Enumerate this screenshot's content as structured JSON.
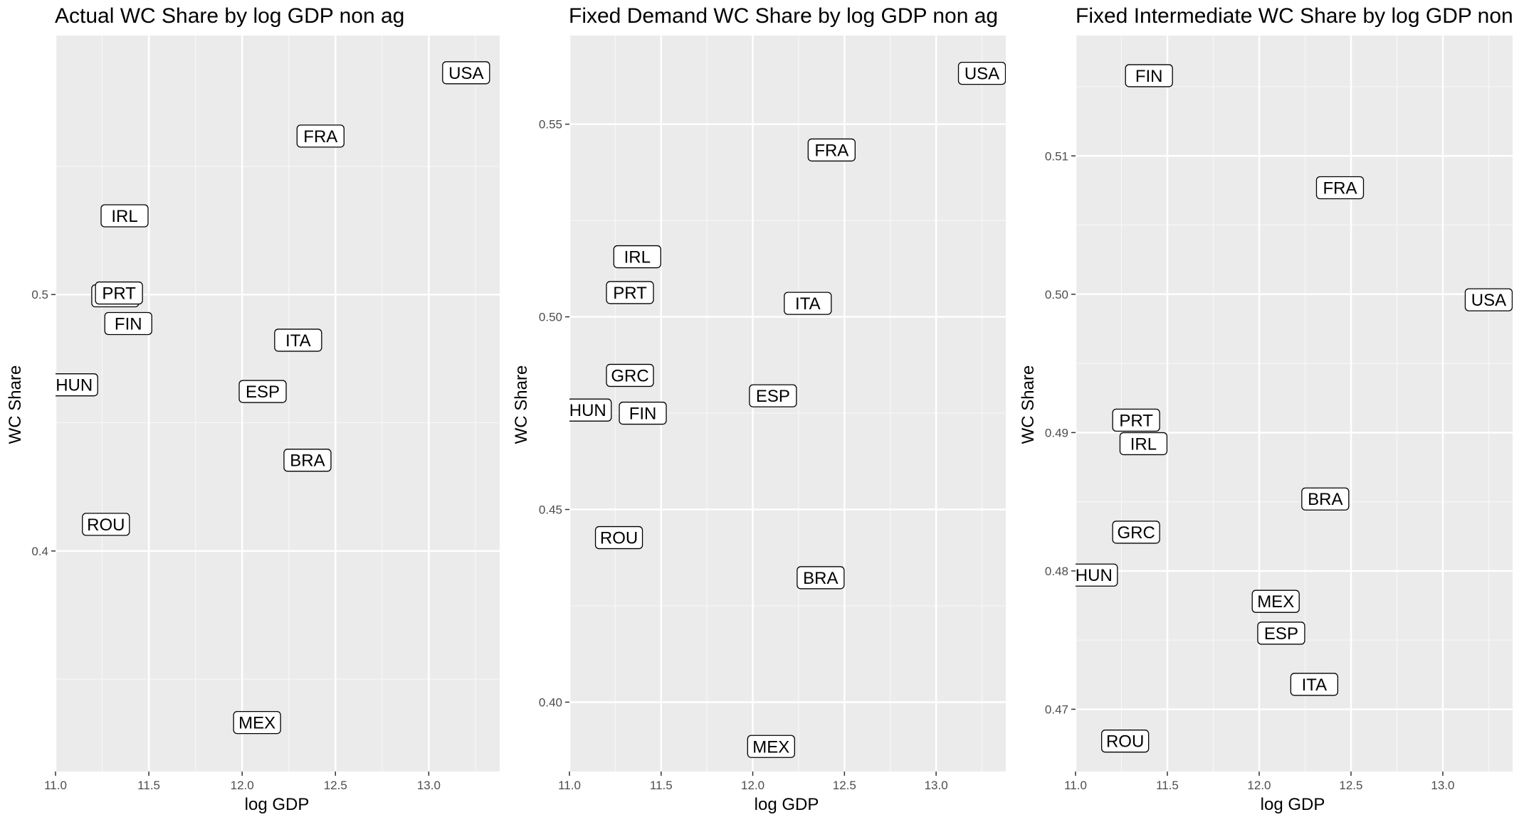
{
  "chart_data": [
    {
      "type": "scatter",
      "title": "Actual WC Share by log GDP non ag",
      "xlabel": "log GDP",
      "ylabel": "WC Share",
      "xlim": [
        11.0,
        13.38
      ],
      "ylim": [
        0.314,
        0.601
      ],
      "x_ticks": [
        "11.0",
        "11.5",
        "12.0",
        "12.5",
        "13.0"
      ],
      "x_tick_values": [
        11.0,
        11.5,
        12.0,
        12.5,
        13.0
      ],
      "y_ticks": [
        "0.4",
        "0.5"
      ],
      "y_tick_values": [
        0.4,
        0.5
      ],
      "grid": true,
      "points": [
        {
          "label": "USA",
          "x": 13.2,
          "y": 0.5865
        },
        {
          "label": "FRA",
          "x": 12.42,
          "y": 0.5618
        },
        {
          "label": "IRL",
          "x": 11.37,
          "y": 0.5307
        },
        {
          "label": "PRT",
          "x": 11.32,
          "y": 0.4995
        },
        {
          "label": "PRT",
          "x": 11.34,
          "y": 0.5006
        },
        {
          "label": "FIN",
          "x": 11.39,
          "y": 0.4887
        },
        {
          "label": "ITA",
          "x": 12.3,
          "y": 0.4822
        },
        {
          "label": "HUN",
          "x": 11.1,
          "y": 0.4648
        },
        {
          "label": "ESP",
          "x": 12.11,
          "y": 0.4622
        },
        {
          "label": "BRA",
          "x": 12.35,
          "y": 0.4354
        },
        {
          "label": "ROU",
          "x": 11.27,
          "y": 0.4104
        },
        {
          "label": "MEX",
          "x": 12.08,
          "y": 0.3331
        }
      ]
    },
    {
      "type": "scatter",
      "title": "Fixed Demand WC Share by log GDP non ag",
      "xlabel": "log GDP",
      "ylabel": "WC Share",
      "xlim": [
        11.0,
        13.38
      ],
      "ylim": [
        0.382,
        0.573
      ],
      "x_ticks": [
        "11.0",
        "11.5",
        "12.0",
        "12.5",
        "13.0"
      ],
      "x_tick_values": [
        11.0,
        11.5,
        12.0,
        12.5,
        13.0
      ],
      "y_ticks": [
        "0.40",
        "0.45",
        "0.50",
        "0.55"
      ],
      "y_tick_values": [
        0.4,
        0.45,
        0.5,
        0.55
      ],
      "grid": true,
      "points": [
        {
          "label": "USA",
          "x": 13.25,
          "y": 0.5632
        },
        {
          "label": "FRA",
          "x": 12.43,
          "y": 0.5433
        },
        {
          "label": "IRL",
          "x": 11.37,
          "y": 0.5156
        },
        {
          "label": "PRT",
          "x": 11.33,
          "y": 0.5063
        },
        {
          "label": "ITA",
          "x": 12.3,
          "y": 0.5035
        },
        {
          "label": "GRC",
          "x": 11.33,
          "y": 0.4848
        },
        {
          "label": "ESP",
          "x": 12.11,
          "y": 0.4795
        },
        {
          "label": "HUN",
          "x": 11.1,
          "y": 0.4758
        },
        {
          "label": "FIN",
          "x": 11.4,
          "y": 0.475
        },
        {
          "label": "ROU",
          "x": 11.27,
          "y": 0.4427
        },
        {
          "label": "BRA",
          "x": 12.37,
          "y": 0.4323
        },
        {
          "label": "MEX",
          "x": 12.1,
          "y": 0.3885
        }
      ]
    },
    {
      "type": "scatter",
      "title": "Fixed Intermediate WC Share by log GDP non ag",
      "xlabel": "log GDP",
      "ylabel": "WC Share",
      "xlim": [
        11.0,
        13.38
      ],
      "ylim": [
        0.4655,
        0.5187
      ],
      "x_ticks": [
        "11.0",
        "11.5",
        "12.0",
        "12.5",
        "13.0"
      ],
      "x_tick_values": [
        11.0,
        11.5,
        12.0,
        12.5,
        13.0
      ],
      "y_ticks": [
        "0.47",
        "0.48",
        "0.49",
        "0.50",
        "0.51"
      ],
      "y_tick_values": [
        0.47,
        0.48,
        0.49,
        0.5,
        0.51
      ],
      "grid": true,
      "points": [
        {
          "label": "FIN",
          "x": 11.4,
          "y": 0.5158
        },
        {
          "label": "FRA",
          "x": 12.44,
          "y": 0.5077
        },
        {
          "label": "USA",
          "x": 13.25,
          "y": 0.4996
        },
        {
          "label": "PRT",
          "x": 11.33,
          "y": 0.4909
        },
        {
          "label": "IRL",
          "x": 11.37,
          "y": 0.4892
        },
        {
          "label": "BRA",
          "x": 12.36,
          "y": 0.4852
        },
        {
          "label": "GRC",
          "x": 11.33,
          "y": 0.4828
        },
        {
          "label": "HUN",
          "x": 11.1,
          "y": 0.4797
        },
        {
          "label": "MEX",
          "x": 12.09,
          "y": 0.4778
        },
        {
          "label": "ESP",
          "x": 12.12,
          "y": 0.4755
        },
        {
          "label": "ITA",
          "x": 12.3,
          "y": 0.4718
        },
        {
          "label": "ROU",
          "x": 11.27,
          "y": 0.4677
        }
      ]
    }
  ]
}
